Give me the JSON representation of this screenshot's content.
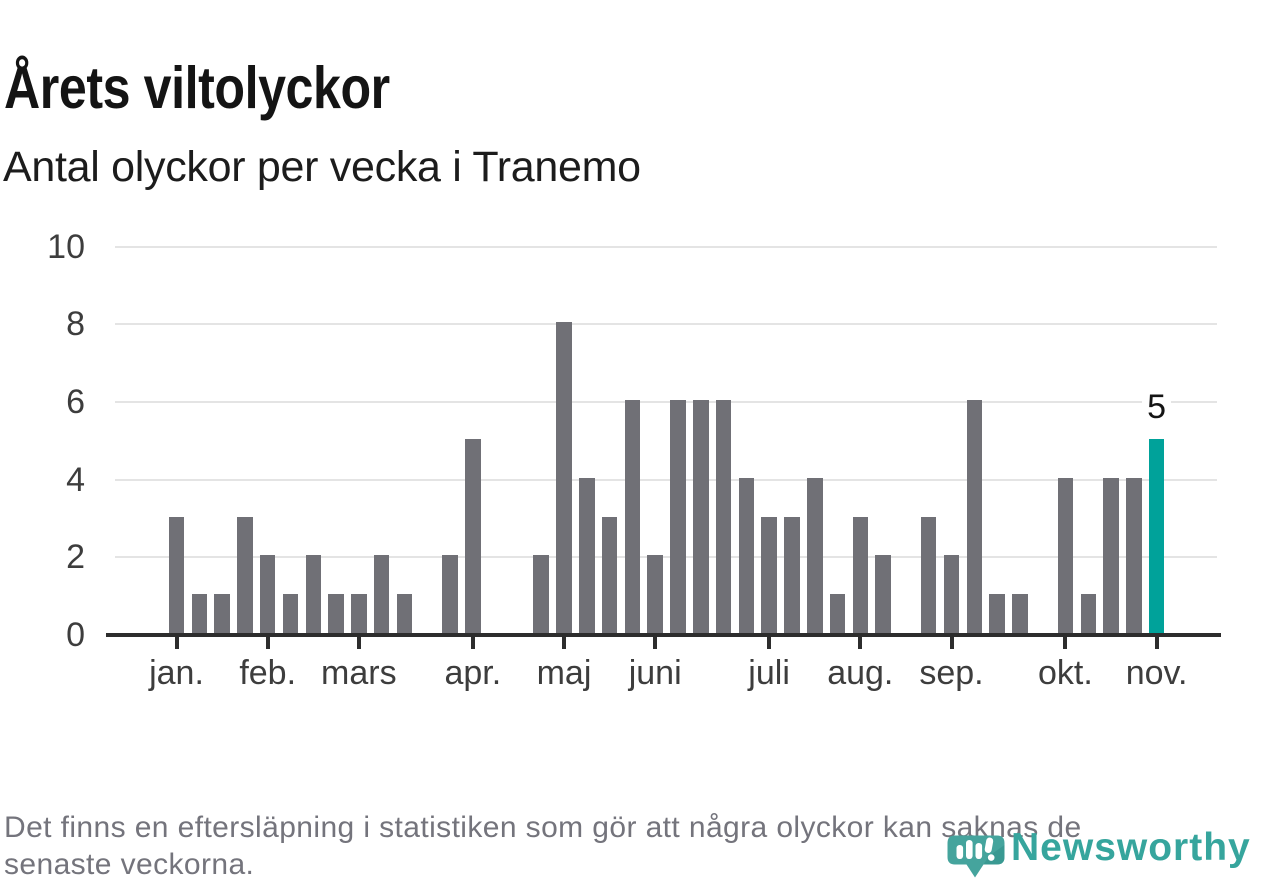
{
  "header": {
    "title": "Årets viltolyckor",
    "subtitle": "Antal olyckor per vecka i Tranemo"
  },
  "chart_data": {
    "type": "bar",
    "title": "Årets viltolyckor",
    "subtitle": "Antal olyckor per vecka i Tranemo",
    "x_unit": "vecka",
    "n_weeks": 44,
    "values": [
      3,
      1,
      1,
      3,
      2,
      1,
      2,
      1,
      1,
      2,
      1,
      0,
      2,
      5,
      0,
      0,
      2,
      8,
      4,
      3,
      6,
      2,
      6,
      6,
      6,
      4,
      3,
      3,
      4,
      1,
      3,
      2,
      0,
      3,
      2,
      6,
      1,
      1,
      0,
      4,
      1,
      4,
      4,
      5
    ],
    "months": [
      {
        "label": "jan.",
        "week_index": 0
      },
      {
        "label": "feb.",
        "week_index": 4
      },
      {
        "label": "mars",
        "week_index": 8
      },
      {
        "label": "apr.",
        "week_index": 13
      },
      {
        "label": "maj",
        "week_index": 17
      },
      {
        "label": "juni",
        "week_index": 21
      },
      {
        "label": "juli",
        "week_index": 26
      },
      {
        "label": "aug.",
        "week_index": 30
      },
      {
        "label": "sep.",
        "week_index": 34
      },
      {
        "label": "okt.",
        "week_index": 39
      },
      {
        "label": "nov.",
        "week_index": 43
      }
    ],
    "highlight_index": 43,
    "highlight_label": "5",
    "y_ticks": [
      0,
      2,
      4,
      6,
      8,
      10
    ],
    "ylim": [
      0,
      10
    ],
    "grid": true,
    "legend": "none",
    "colors": {
      "bar": "#707076",
      "highlight": "#00a29a",
      "grid": "#e4e4e4",
      "axis": "#2d2d2d",
      "tick_label": "#3d3d3d"
    }
  },
  "footer": {
    "line1": "Det finns en eftersläpning i statistiken som gör att några olyckor kan saknas de",
    "line2": "senaste veckorna."
  },
  "logo": {
    "text": "Newsworthy",
    "icon": "newsworthy-bar-bubble-icon",
    "icon_color": "#45a49d",
    "text_color": "#36a59d"
  }
}
